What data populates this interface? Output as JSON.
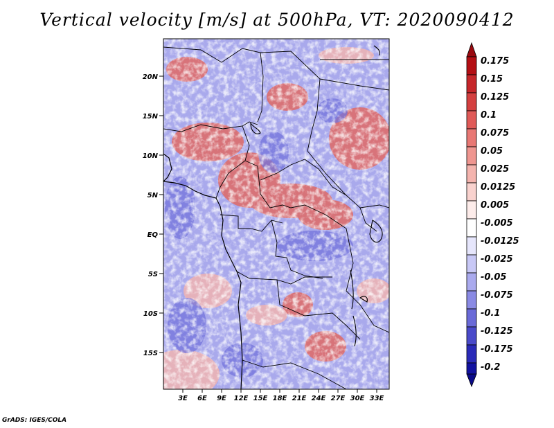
{
  "map": {
    "title": "Vertical velocity [m/s] at 500hPa, VT: 2020090412",
    "lat_labels": [
      "20N",
      "15N",
      "10N",
      "5N",
      "EQ",
      "5S",
      "10S",
      "15S"
    ],
    "lon_labels": [
      "3E",
      "6E",
      "9E",
      "12E",
      "15E",
      "18E",
      "21E",
      "24E",
      "27E",
      "30E",
      "33E"
    ],
    "credit": "GrADS: IGES/COLA"
  },
  "colorbar": {
    "labels": [
      "0.175",
      "0.15",
      "0.125",
      "0.1",
      "0.075",
      "0.05",
      "0.025",
      "0.0125",
      "0.005",
      "-0.005",
      "-0.0125",
      "-0.025",
      "-0.05",
      "-0.075",
      "-0.1",
      "-0.125",
      "-0.175",
      "-0.2"
    ],
    "colors": [
      "#b40f14",
      "#c6262a",
      "#d44040",
      "#e05a58",
      "#e87874",
      "#ef9690",
      "#f4b4ae",
      "#f9d2ce",
      "#fdecea",
      "#ffffff",
      "#e6e6fc",
      "#c8c8f6",
      "#aaaaee",
      "#8a8ae4",
      "#6a6ad8",
      "#4a4aca",
      "#2a2ab8",
      "#1212a0"
    ],
    "top_color": "#9a0a10",
    "bottom_color": "#0a0a88"
  }
}
